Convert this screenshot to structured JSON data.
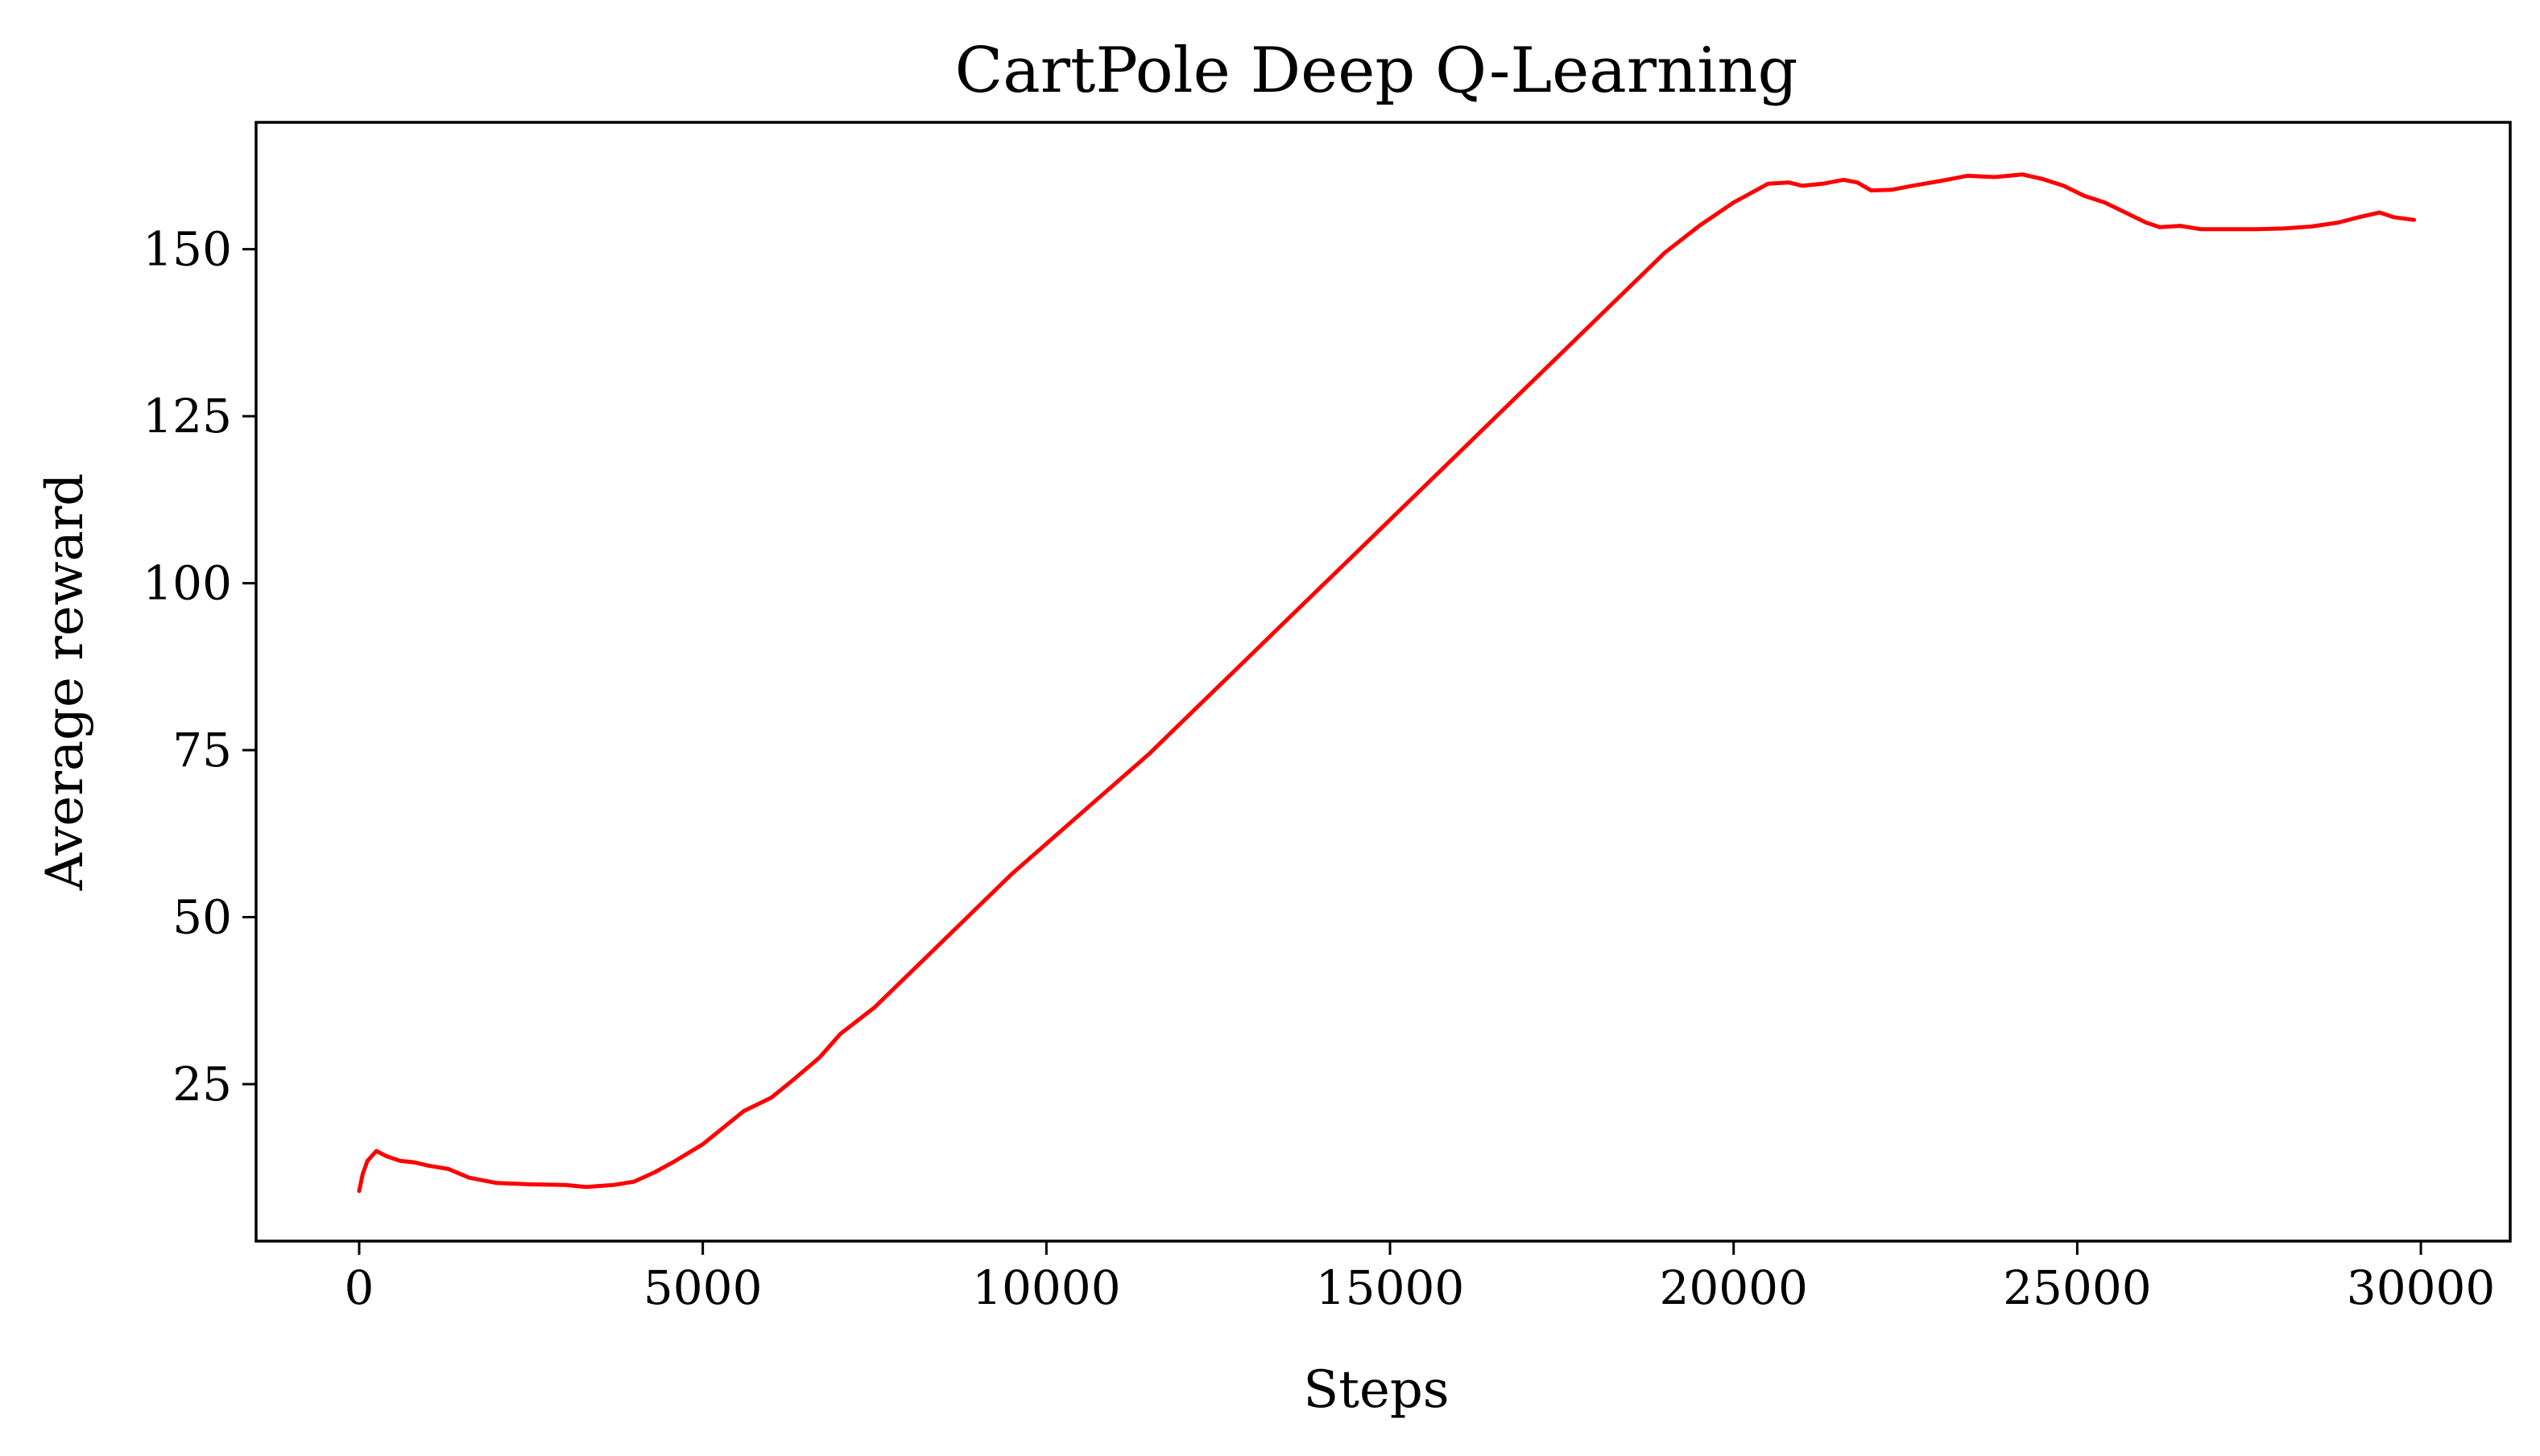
{
  "chart_data": {
    "type": "line",
    "title": "CartPole Deep Q-Learning",
    "xlabel": "Steps",
    "ylabel": "Average reward",
    "xlim": [
      -1500,
      31300
    ],
    "ylim": [
      1.5,
      169
    ],
    "grid": false,
    "xticks": [
      0,
      5000,
      10000,
      15000,
      20000,
      25000,
      30000
    ],
    "xtick_labels": [
      "0",
      "5000",
      "10000",
      "15000",
      "20000",
      "25000",
      "30000"
    ],
    "yticks": [
      25,
      50,
      75,
      100,
      125,
      150
    ],
    "ytick_labels": [
      "25",
      "50",
      "75",
      "100",
      "125",
      "150"
    ],
    "series": [
      {
        "color": "#ff0000",
        "x": [
          0,
          50,
          120,
          250,
          400,
          600,
          800,
          1000,
          1300,
          1600,
          2000,
          2500,
          3000,
          3300,
          3700,
          4000,
          4300,
          4600,
          5000,
          5300,
          5600,
          6000,
          6300,
          6700,
          7000,
          7500,
          8000,
          8500,
          9000,
          9500,
          10000,
          10500,
          11000,
          11500,
          12000,
          12500,
          13000,
          13500,
          14000,
          14500,
          15000,
          15500,
          16000,
          16500,
          17000,
          17500,
          18000,
          18500,
          19000,
          19500,
          20000,
          20500,
          20800,
          21000,
          21300,
          21600,
          21800,
          22000,
          22300,
          22600,
          23000,
          23400,
          23800,
          24200,
          24500,
          24800,
          25100,
          25400,
          25700,
          26000,
          26200,
          26500,
          26800,
          27200,
          27600,
          28000,
          28400,
          28800,
          29100,
          29400,
          29600,
          29900
        ],
        "y": [
          9,
          11.5,
          13.5,
          15,
          14.2,
          13.5,
          13.3,
          12.8,
          12.3,
          11,
          10.2,
          10,
          9.9,
          9.6,
          9.9,
          10.4,
          11.8,
          13.5,
          16,
          18.5,
          21,
          23,
          25.5,
          29,
          32.5,
          36.5,
          41.5,
          46.5,
          51.5,
          56.5,
          61,
          65.5,
          70,
          74.5,
          79.5,
          84.5,
          89.5,
          94.5,
          99.5,
          104.5,
          109.5,
          114.5,
          119.5,
          124.5,
          129.5,
          134.5,
          139.5,
          144.5,
          149.5,
          153.5,
          157,
          159.8,
          160,
          159.5,
          159.8,
          160.4,
          160,
          158.8,
          158.9,
          159.5,
          160.2,
          161,
          160.8,
          161.2,
          160.5,
          159.5,
          158,
          157,
          155.5,
          154,
          153.3,
          153.5,
          153,
          153,
          153,
          153.1,
          153.4,
          154,
          154.8,
          155.5,
          154.8,
          154.4
        ]
      }
    ]
  }
}
